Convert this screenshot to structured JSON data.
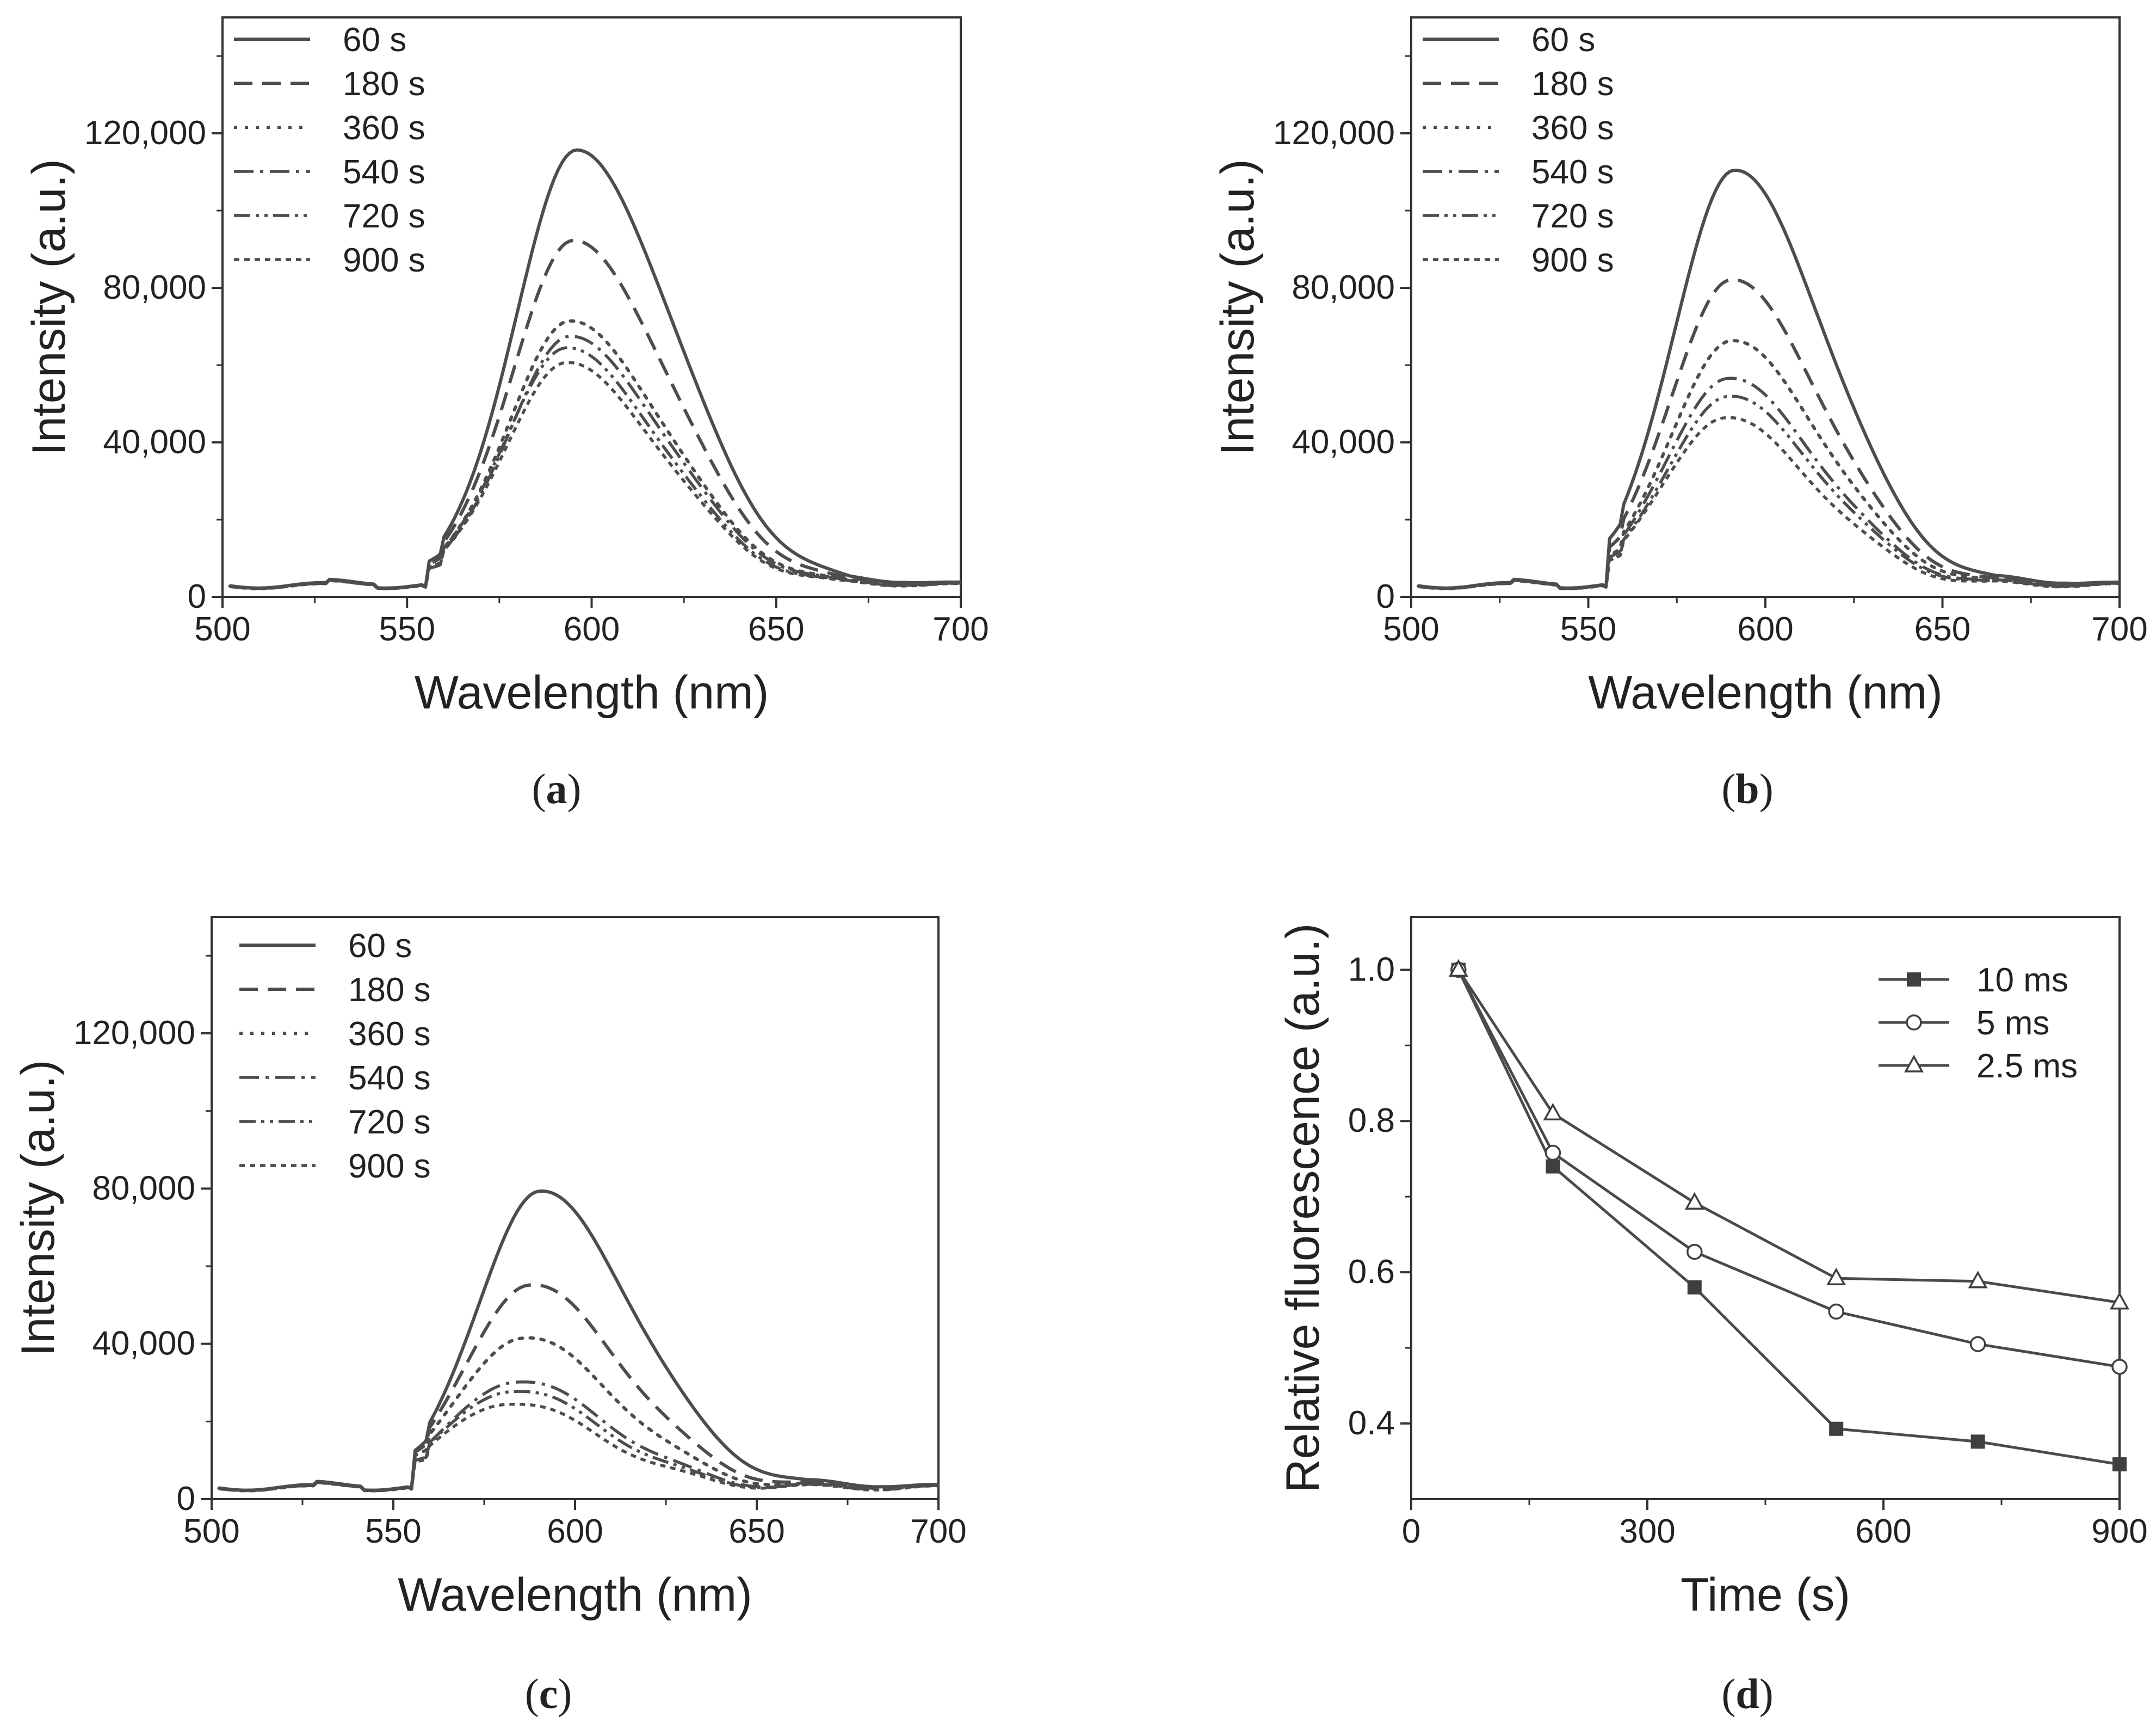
{
  "figure": {
    "captions": [
      "a",
      "b",
      "c",
      "d"
    ]
  },
  "chart_data": [
    {
      "id": "a",
      "type": "line",
      "xlabel": "Wavelength (nm)",
      "ylabel": "Intensity (a.u.)",
      "xlim": [
        500,
        700
      ],
      "ylim": [
        0,
        150000
      ],
      "xticks": [
        500,
        550,
        600,
        650,
        700
      ],
      "yticks": [
        0,
        40000,
        80000,
        120000
      ],
      "ytick_labels": [
        "0",
        "40,000",
        "80,000",
        "120,000"
      ],
      "legend": [
        "60 s",
        "180 s",
        "360 s",
        "540 s",
        "720 s",
        "900 s"
      ],
      "legend_position": "top-left",
      "peaks": [
        {
          "name": "60 s",
          "peak_x": 596,
          "peak_y": 112000
        },
        {
          "name": "180 s",
          "peak_x": 595,
          "peak_y": 90000
        },
        {
          "name": "360 s",
          "peak_x": 594,
          "peak_y": 70000
        },
        {
          "name": "540 s",
          "peak_x": 594,
          "peak_y": 67000
        },
        {
          "name": "720 s",
          "peak_x": 593,
          "peak_y": 65000
        },
        {
          "name": "900 s",
          "peak_x": 593,
          "peak_y": 62000
        }
      ]
    },
    {
      "id": "b",
      "type": "line",
      "xlabel": "Wavelength (nm)",
      "ylabel": "Intensity (a.u.)",
      "xlim": [
        500,
        700
      ],
      "ylim": [
        0,
        150000
      ],
      "xticks": [
        500,
        550,
        600,
        650,
        700
      ],
      "yticks": [
        0,
        40000,
        80000,
        120000
      ],
      "ytick_labels": [
        "0",
        "40,000",
        "80,000",
        "120,000"
      ],
      "legend": [
        "60 s",
        "180 s",
        "360 s",
        "540 s",
        "720 s",
        "900 s"
      ],
      "legend_position": "top-left",
      "peaks": [
        {
          "name": "60 s",
          "peak_x": 591,
          "peak_y": 107000
        },
        {
          "name": "180 s",
          "peak_x": 590,
          "peak_y": 80000
        },
        {
          "name": "360 s",
          "peak_x": 590,
          "peak_y": 65000
        },
        {
          "name": "540 s",
          "peak_x": 589,
          "peak_y": 56000
        },
        {
          "name": "720 s",
          "peak_x": 589,
          "peak_y": 52000
        },
        {
          "name": "900 s",
          "peak_x": 588,
          "peak_y": 47000
        }
      ]
    },
    {
      "id": "c",
      "type": "line",
      "xlabel": "Wavelength (nm)",
      "ylabel": "Intensity (a.u.)",
      "xlim": [
        500,
        700
      ],
      "ylim": [
        0,
        150000
      ],
      "xticks": [
        500,
        550,
        600,
        650,
        700
      ],
      "yticks": [
        0,
        40000,
        80000,
        120000
      ],
      "ytick_labels": [
        "0",
        "40,000",
        "80,000",
        "120,000"
      ],
      "legend": [
        "60 s",
        "180 s",
        "360 s",
        "540 s",
        "720 s",
        "900 s"
      ],
      "legend_position": "top-left",
      "peaks": [
        {
          "name": "60 s",
          "peak_x": 590,
          "peak_y": 76000
        },
        {
          "name": "180 s",
          "peak_x": 587,
          "peak_y": 53000
        },
        {
          "name": "360 s",
          "peak_x": 585,
          "peak_y": 40000
        },
        {
          "name": "540 s",
          "peak_x": 583,
          "peak_y": 29000
        },
        {
          "name": "720 s",
          "peak_x": 582,
          "peak_y": 27000
        },
        {
          "name": "900 s",
          "peak_x": 581,
          "peak_y": 24000
        }
      ]
    },
    {
      "id": "d",
      "type": "line",
      "xlabel": "Time (s)",
      "ylabel": "Relative fluorescence (a.u.)",
      "xlim": [
        0,
        900
      ],
      "ylim": [
        0.3,
        1.07
      ],
      "xticks": [
        0,
        300,
        600,
        900
      ],
      "yticks": [
        0.4,
        0.6,
        0.8,
        1.0
      ],
      "ytick_labels": [
        "0.4",
        "0.6",
        "0.8",
        "1.0"
      ],
      "legend_position": "top-right",
      "x": [
        60,
        180,
        360,
        540,
        720,
        900
      ],
      "series": [
        {
          "name": "10 ms",
          "marker": "filled-square",
          "values": [
            1.0,
            0.74,
            0.58,
            0.393,
            0.376,
            0.346
          ]
        },
        {
          "name": "5 ms",
          "marker": "open-circle",
          "values": [
            1.0,
            0.758,
            0.627,
            0.548,
            0.505,
            0.475
          ]
        },
        {
          "name": "2.5 ms",
          "marker": "open-triangle",
          "values": [
            1.0,
            0.81,
            0.692,
            0.592,
            0.588,
            0.56
          ]
        }
      ]
    }
  ]
}
